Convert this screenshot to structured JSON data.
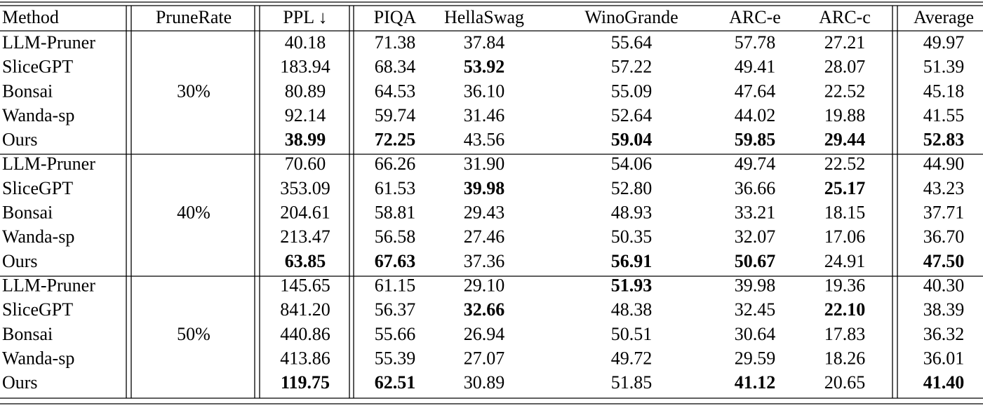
{
  "header": {
    "columns": [
      "Method",
      "PruneRate",
      "PPL ↓",
      "PIQA",
      "HellaSwag",
      "WinoGrande",
      "ARC-e",
      "ARC-c",
      "Average"
    ]
  },
  "groups": [
    {
      "rate": "30%",
      "rows": [
        {
          "method": "LLM-Pruner",
          "cells": [
            "40.18",
            "71.38",
            "37.84",
            "55.64",
            "57.78",
            "27.21",
            "49.97"
          ],
          "bold": []
        },
        {
          "method": "SliceGPT",
          "cells": [
            "183.94",
            "68.34",
            "53.92",
            "57.22",
            "49.41",
            "28.07",
            "51.39"
          ],
          "bold": [
            2
          ]
        },
        {
          "method": "Bonsai",
          "cells": [
            "80.89",
            "64.53",
            "36.10",
            "55.09",
            "47.64",
            "22.52",
            "45.18"
          ],
          "bold": []
        },
        {
          "method": "Wanda-sp",
          "cells": [
            "92.14",
            "59.74",
            "31.46",
            "52.64",
            "44.02",
            "19.88",
            "41.55"
          ],
          "bold": []
        },
        {
          "method": "Ours",
          "cells": [
            "38.99",
            "72.25",
            "43.56",
            "59.04",
            "59.85",
            "29.44",
            "52.83"
          ],
          "bold": [
            0,
            1,
            3,
            4,
            5,
            6
          ]
        }
      ]
    },
    {
      "rate": "40%",
      "rows": [
        {
          "method": "LLM-Pruner",
          "cells": [
            "70.60",
            "66.26",
            "31.90",
            "54.06",
            "49.74",
            "22.52",
            "44.90"
          ],
          "bold": []
        },
        {
          "method": "SliceGPT",
          "cells": [
            "353.09",
            "61.53",
            "39.98",
            "52.80",
            "36.66",
            "25.17",
            "43.23"
          ],
          "bold": [
            2,
            5
          ]
        },
        {
          "method": "Bonsai",
          "cells": [
            "204.61",
            "58.81",
            "29.43",
            "48.93",
            "33.21",
            "18.15",
            "37.71"
          ],
          "bold": []
        },
        {
          "method": "Wanda-sp",
          "cells": [
            "213.47",
            "56.58",
            "27.46",
            "50.35",
            "32.07",
            "17.06",
            "36.70"
          ],
          "bold": []
        },
        {
          "method": "Ours",
          "cells": [
            "63.85",
            "67.63",
            "37.36",
            "56.91",
            "50.67",
            "24.91",
            "47.50"
          ],
          "bold": [
            0,
            1,
            3,
            4,
            6
          ]
        }
      ]
    },
    {
      "rate": "50%",
      "rows": [
        {
          "method": "LLM-Pruner",
          "cells": [
            "145.65",
            "61.15",
            "29.10",
            "51.93",
            "39.98",
            "19.36",
            "40.30"
          ],
          "bold": [
            3
          ]
        },
        {
          "method": "SliceGPT",
          "cells": [
            "841.20",
            "56.37",
            "32.66",
            "48.38",
            "32.45",
            "22.10",
            "38.39"
          ],
          "bold": [
            2,
            5
          ]
        },
        {
          "method": "Bonsai",
          "cells": [
            "440.86",
            "55.66",
            "26.94",
            "50.51",
            "30.64",
            "17.83",
            "36.32"
          ],
          "bold": []
        },
        {
          "method": "Wanda-sp",
          "cells": [
            "413.86",
            "55.39",
            "27.07",
            "49.72",
            "29.59",
            "18.26",
            "36.01"
          ],
          "bold": []
        },
        {
          "method": "Ours",
          "cells": [
            "119.75",
            "62.51",
            "30.89",
            "51.85",
            "41.12",
            "20.65",
            "41.40"
          ],
          "bold": [
            0,
            1,
            4,
            6
          ]
        }
      ]
    }
  ]
}
